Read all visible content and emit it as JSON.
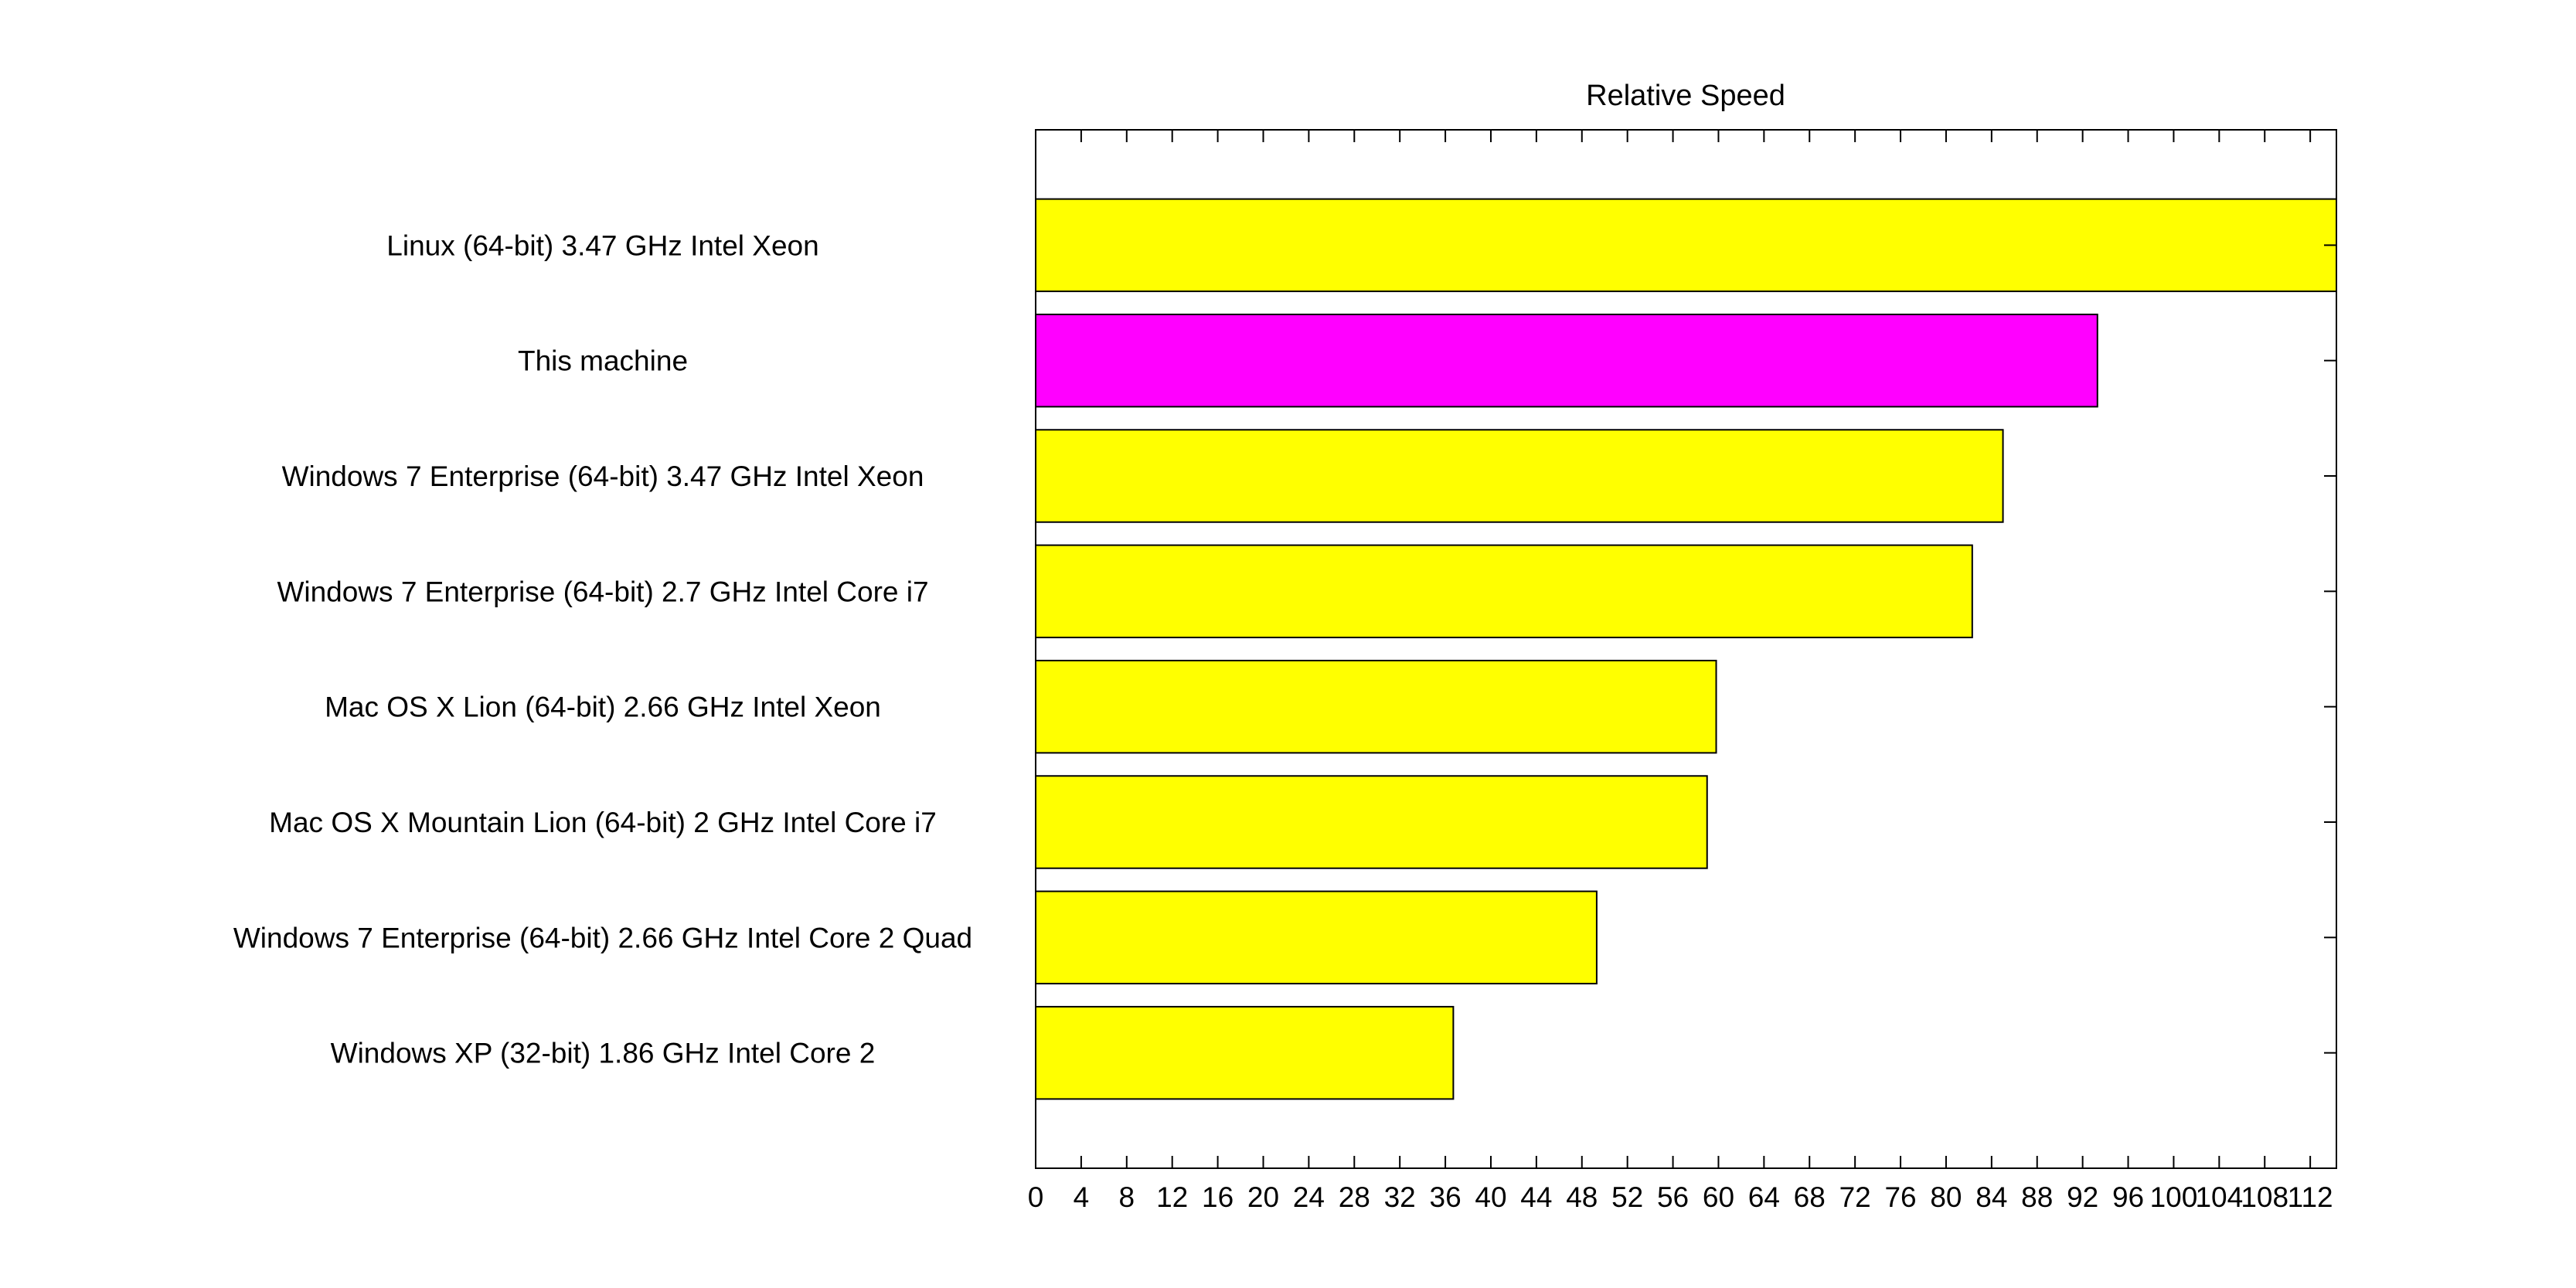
{
  "chart_data": {
    "type": "bar",
    "orientation": "horizontal",
    "title": "Relative Speed",
    "xlabel": "",
    "ylabel": "",
    "categories": [
      "Linux (64-bit) 3.47 GHz Intel Xeon",
      "This machine",
      "Windows 7 Enterprise (64-bit) 3.47 GHz Intel Xeon",
      "Windows 7 Enterprise (64-bit) 2.7 GHz Intel Core i7",
      "Mac OS X Lion (64-bit) 2.66 GHz Intel Xeon",
      "Mac OS X Mountain Lion (64-bit) 2 GHz Intel Core i7",
      "Windows 7 Enterprise (64-bit) 2.66 GHz Intel Core 2 Quad",
      "Windows XP (32-bit) 1.86 GHz Intel Core 2"
    ],
    "values": [
      114.3,
      93.3,
      85.0,
      82.3,
      59.8,
      59.0,
      49.3,
      36.7
    ],
    "bar_colors": [
      "#ffff00",
      "#ff00ff",
      "#ffff00",
      "#ffff00",
      "#ffff00",
      "#ffff00",
      "#ffff00",
      "#ffff00"
    ],
    "xlim": [
      0,
      114.3
    ],
    "x_tick_labels": [
      "0",
      "4",
      "8",
      "12",
      "16",
      "20",
      "24",
      "28",
      "32",
      "36",
      "40",
      "44",
      "48",
      "52",
      "56",
      "60",
      "64",
      "68",
      "72",
      "76",
      "80",
      "84",
      "88",
      "92",
      "96",
      "100",
      "104",
      "108",
      "112"
    ],
    "grid": false,
    "legend": "none"
  }
}
